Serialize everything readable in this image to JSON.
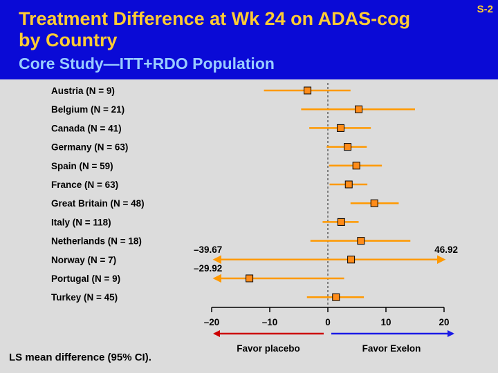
{
  "slide": {
    "title": "Treatment Difference at Wk 24 on ADAS-cog by Country",
    "subtitle": "Core Study—ITT+RDO Population",
    "slide_number": "S-2",
    "footnote": "LS mean difference (95% CI).",
    "favor_left": "Favor placebo",
    "favor_right": "Favor Exelon"
  },
  "colors": {
    "header_bg": "#0a0ad6",
    "title": "#ffcc33",
    "subtitle": "#99ccff",
    "ci_line": "#ff9900",
    "marker_fill": "#ff8c1a",
    "favor_placebo_arrow": "#cc0000",
    "favor_exelon_arrow": "#1a1ae6"
  },
  "chart_data": {
    "type": "forest",
    "categories": [
      "Austria (N = 9)",
      "Belgium (N = 21)",
      "Canada (N = 41)",
      "Germany (N = 63)",
      "Spain (N = 59)",
      "France (N = 63)",
      "Great Britain (N = 48)",
      "Italy (N = 118)",
      "Netherlands (N = 18)",
      "Norway (N = 7)",
      "Portugal (N = 9)",
      "Turkey (N = 45)"
    ],
    "estimates": [
      -3.5,
      5.3,
      2.2,
      3.4,
      4.9,
      3.6,
      8.0,
      2.3,
      5.7,
      4.0,
      -13.5,
      1.4
    ],
    "ci_lower": [
      -11.0,
      -4.6,
      -3.2,
      -0.2,
      0.2,
      0.3,
      3.9,
      -0.9,
      -3.0,
      -39.67,
      -29.92,
      -3.6
    ],
    "ci_upper": [
      3.9,
      15.0,
      7.4,
      6.7,
      9.3,
      6.8,
      12.2,
      5.3,
      14.2,
      46.92,
      2.8,
      6.2
    ],
    "truncated_labels": [
      {
        "row": 9,
        "side": "left",
        "text": "–39.67"
      },
      {
        "row": 9,
        "side": "right",
        "text": "46.92"
      },
      {
        "row": 10,
        "side": "left",
        "text": "–29.92"
      }
    ],
    "xlim": [
      -20,
      20
    ],
    "xticks": [
      -20,
      -10,
      0,
      10,
      20
    ],
    "xtick_labels": [
      "–20",
      "–10",
      "0",
      "10",
      "20"
    ],
    "reference_line": 0,
    "xlabel": "",
    "title": "",
    "grid": false
  }
}
